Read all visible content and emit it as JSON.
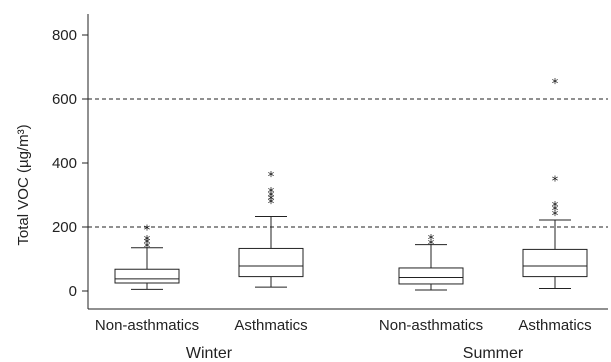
{
  "chart_data": {
    "type": "boxplot",
    "ylabel": "Total VOC (µg/m³)",
    "ylim": [
      -20,
      860
    ],
    "yticks": [
      0,
      200,
      400,
      600,
      800
    ],
    "reference_lines": [
      200,
      600
    ],
    "groups": [
      "Winter",
      "Summer"
    ],
    "boxes": [
      {
        "label": "Non-asthmatics",
        "group": "Winter",
        "min": 5,
        "q1": 25,
        "median": 38,
        "q3": 68,
        "max": 135,
        "outliers": [
          150,
          162,
          172,
          205
        ]
      },
      {
        "label": "Asthmatics",
        "group": "Winter",
        "min": 12,
        "q1": 45,
        "median": 78,
        "q3": 133,
        "max": 233,
        "outliers": [
          288,
          298,
          310,
          322,
          372
        ]
      },
      {
        "label": "Non-asthmatics",
        "group": "Summer",
        "min": 3,
        "q1": 22,
        "median": 42,
        "q3": 72,
        "max": 145,
        "outliers": [
          160,
          175
        ]
      },
      {
        "label": "Asthmatics",
        "group": "Summer",
        "min": 8,
        "q1": 45,
        "median": 78,
        "q3": 130,
        "max": 222,
        "outliers": [
          250,
          265,
          278,
          358,
          662
        ]
      }
    ]
  }
}
